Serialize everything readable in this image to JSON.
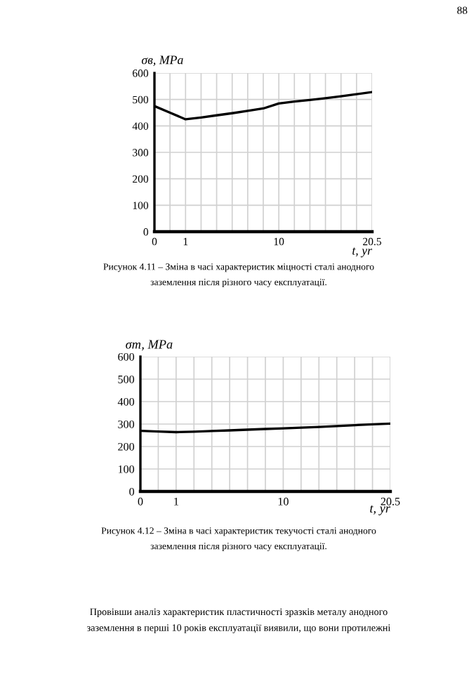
{
  "chart_data": [
    {
      "type": "line",
      "ylabel": "σв, MPa",
      "xlabel": "t, yr",
      "categories": [
        "0",
        null,
        "1",
        null,
        null,
        null,
        null,
        null,
        "10",
        null,
        null,
        null,
        null,
        null,
        "20.5"
      ],
      "series": [
        {
          "color": "#000000",
          "values": [
            475,
            450,
            425,
            432,
            440,
            448,
            457,
            466,
            485,
            492,
            498,
            505,
            512,
            520,
            528
          ]
        }
      ],
      "ylim": [
        0,
        600
      ],
      "yticks": [
        0,
        100,
        200,
        300,
        400,
        500,
        600
      ],
      "grid": true,
      "legend": false,
      "marker": "none",
      "line_style": "solid",
      "annotations": [
        "88",
        "Рисунок 4.11 – Зміна в часі характеристик міцності сталі анодного\nзаземлення після різного часу експлуатації."
      ]
    },
    {
      "type": "line",
      "ylabel": "σт, MPa",
      "xlabel": "t, yr",
      "categories": [
        "0",
        null,
        "1",
        null,
        null,
        null,
        null,
        null,
        "10",
        null,
        null,
        null,
        null,
        null,
        "20.5"
      ],
      "series": [
        {
          "color": "#000000",
          "values": [
            270,
            267,
            264,
            266,
            269,
            272,
            275,
            278,
            281,
            284,
            287,
            291,
            295,
            299,
            302
          ]
        }
      ],
      "ylim": [
        0,
        600
      ],
      "yticks": [
        0,
        100,
        200,
        300,
        400,
        500,
        600
      ],
      "grid": true,
      "legend": false,
      "marker": "none",
      "line_style": "solid",
      "annotations": [
        "Рисунок 4.12 – Зміна в часі характеристик текучості сталі анодного\nзаземлення після різного часу експлуатації.",
        "Провівши аналіз характеристик пластичності зразків металу анодного\nзаземлення в перші 10 років експлуатації виявили, що вони протилежні"
      ]
    }
  ]
}
